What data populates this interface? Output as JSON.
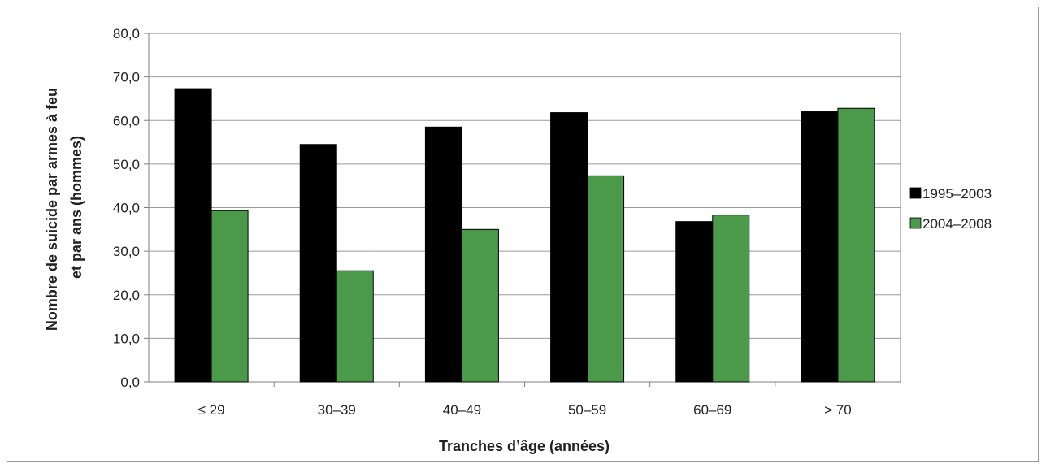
{
  "chart_data": {
    "type": "bar",
    "categories": [
      "≤ 29",
      "30–39",
      "40–49",
      "50–59",
      "60–69",
      "> 70"
    ],
    "series": [
      {
        "name": "1995–2003",
        "values": [
          67.3,
          54.5,
          58.5,
          61.8,
          36.8,
          62.0
        ],
        "color": "#000000"
      },
      {
        "name": "2004–2008",
        "values": [
          39.3,
          25.5,
          35.0,
          47.3,
          38.3,
          62.8
        ],
        "color": "#4a9a4a"
      }
    ],
    "xlabel": "Tranches d’âge (années)",
    "ylabel_lines": [
      "Nombre de suicide par armes à feu",
      "et par ans (hommes)"
    ],
    "y_tick_labels": [
      "0,0",
      "10,0",
      "20,0",
      "30,0",
      "40,0",
      "50,0",
      "60,0",
      "70,0",
      "80,0"
    ],
    "ylim": [
      0,
      80
    ],
    "grid": true,
    "legend_position": "right"
  }
}
